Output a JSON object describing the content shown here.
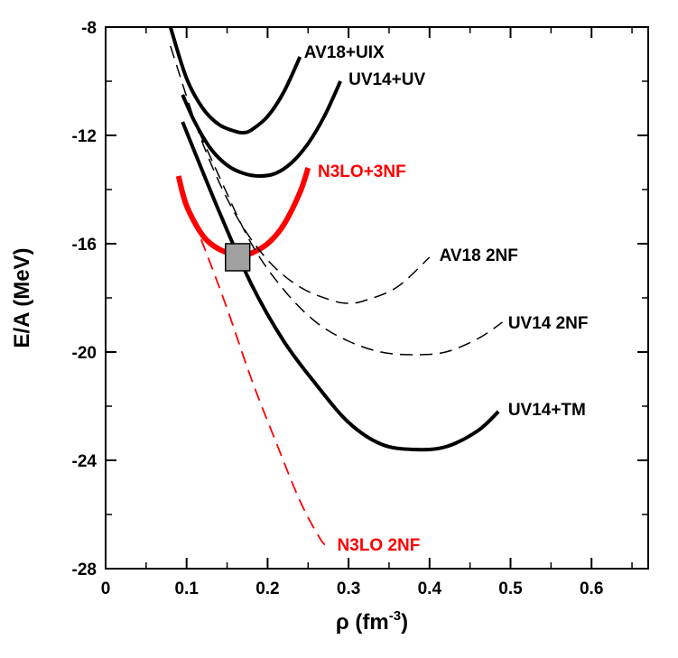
{
  "chart_data": {
    "type": "line",
    "xlabel": "ρ (fm",
    "xlabel_sup": "-3",
    "xlabel_close": ")",
    "ylabel": "E/A (MeV)",
    "xlim": [
      0,
      0.67
    ],
    "ylim": [
      -28,
      -8
    ],
    "x_ticks": [
      0,
      0.1,
      0.2,
      0.3,
      0.4,
      0.5,
      0.6
    ],
    "x_tick_labels": [
      "0",
      "0.1",
      "0.2",
      "0.3",
      "0.4",
      "0.5",
      "0.6"
    ],
    "y_ticks": [
      -28,
      -24,
      -20,
      -16,
      -12,
      -8
    ],
    "y_tick_labels": [
      "-28",
      "-24",
      "-20",
      "-16",
      "-12",
      "-8"
    ],
    "grid": false,
    "legend": "none",
    "empirical_box": {
      "x": [
        0.148,
        0.178
      ],
      "y": [
        -17.0,
        -16.0
      ],
      "color": "#a0a0a0"
    },
    "series": [
      {
        "name": "AV18+UIX",
        "color": "#000000",
        "style": "thick",
        "x": [
          0.08,
          0.1,
          0.12,
          0.14,
          0.16,
          0.17,
          0.18,
          0.2,
          0.22,
          0.24
        ],
        "y": [
          -8.0,
          -9.9,
          -11.0,
          -11.6,
          -11.85,
          -11.9,
          -11.8,
          -11.3,
          -10.4,
          -9.1
        ]
      },
      {
        "name": "UV14+UV",
        "color": "#000000",
        "style": "thick",
        "x": [
          0.095,
          0.11,
          0.13,
          0.15,
          0.17,
          0.19,
          0.21,
          0.23,
          0.25,
          0.27,
          0.29
        ],
        "y": [
          -10.5,
          -11.5,
          -12.5,
          -13.1,
          -13.4,
          -13.5,
          -13.4,
          -13.0,
          -12.3,
          -11.3,
          -10.0
        ]
      },
      {
        "name": "N3LO+3NF",
        "color": "#ff0000",
        "style": "thick",
        "x": [
          0.09,
          0.1,
          0.12,
          0.14,
          0.16,
          0.17,
          0.18,
          0.2,
          0.22,
          0.24,
          0.25
        ],
        "y": [
          -13.5,
          -14.6,
          -15.7,
          -16.2,
          -16.4,
          -16.4,
          -16.35,
          -16.0,
          -15.3,
          -14.1,
          -13.2
        ]
      },
      {
        "name": "AV18 2NF",
        "color": "#000000",
        "style": "dashed",
        "x": [
          0.08,
          0.12,
          0.16,
          0.2,
          0.24,
          0.28,
          0.3,
          0.32,
          0.36,
          0.4
        ],
        "y": [
          -8.7,
          -12.3,
          -14.9,
          -16.6,
          -17.6,
          -18.1,
          -18.2,
          -18.1,
          -17.6,
          -16.5
        ]
      },
      {
        "name": "UV14 2NF",
        "color": "#000000",
        "style": "dashed",
        "x": [
          0.095,
          0.14,
          0.18,
          0.22,
          0.26,
          0.3,
          0.34,
          0.38,
          0.42,
          0.46,
          0.49
        ],
        "y": [
          -10.5,
          -13.5,
          -16.0,
          -17.7,
          -18.9,
          -19.6,
          -20.0,
          -20.1,
          -20.0,
          -19.5,
          -18.9
        ]
      },
      {
        "name": "UV14+TM",
        "color": "#000000",
        "style": "thick",
        "x": [
          0.095,
          0.14,
          0.18,
          0.22,
          0.26,
          0.3,
          0.34,
          0.38,
          0.42,
          0.46,
          0.485
        ],
        "y": [
          -11.5,
          -14.8,
          -17.5,
          -19.6,
          -21.2,
          -22.6,
          -23.4,
          -23.6,
          -23.5,
          -22.9,
          -22.2
        ]
      },
      {
        "name": "N3LO 2NF",
        "color": "#ff0000",
        "style": "dashed",
        "x": [
          0.09,
          0.12,
          0.15,
          0.18,
          0.21,
          0.24,
          0.265,
          0.275
        ],
        "y": [
          -13.8,
          -16.0,
          -18.4,
          -21.0,
          -23.3,
          -25.5,
          -26.9,
          -27.2
        ]
      }
    ],
    "annotations": [
      {
        "text": "AV18+UIX",
        "color": "#000000",
        "x": 0.245,
        "y": -8.9
      },
      {
        "text": "UV14+UV",
        "color": "#000000",
        "x": 0.3,
        "y": -9.9
      },
      {
        "text": "N3LO+3NF",
        "color": "#ff0000",
        "x": 0.262,
        "y": -13.3
      },
      {
        "text": "AV18 2NF",
        "color": "#000000",
        "x": 0.412,
        "y": -16.4
      },
      {
        "text": "UV14 2NF",
        "color": "#000000",
        "x": 0.497,
        "y": -18.9
      },
      {
        "text": "UV14+TM",
        "color": "#000000",
        "x": 0.497,
        "y": -22.1
      },
      {
        "text": "N3LO 2NF",
        "color": "#ff0000",
        "x": 0.286,
        "y": -27.1
      }
    ]
  }
}
